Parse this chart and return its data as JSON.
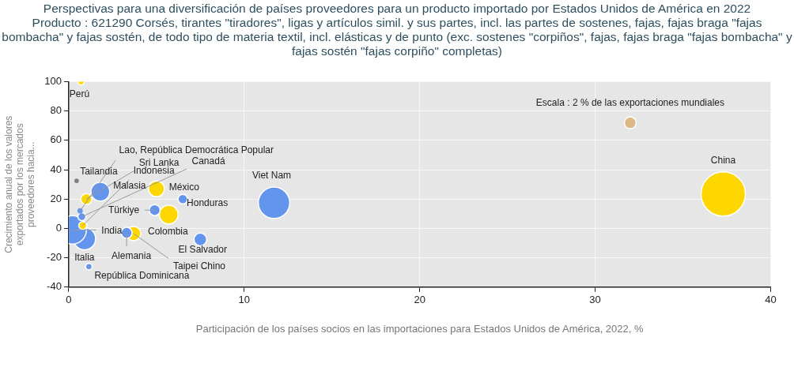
{
  "chart_data": {
    "type": "bubble",
    "title": "Perspectivas para una diversificación de países proveedores para un producto importado por Estados Unidos de América en 2022",
    "subtitle": "Producto : 621290 Corsés, tirantes \"tiradores\", ligas y artículos simil. y sus partes, incl. las partes de sostenes, fajas, fajas braga \"fajas bombacha\" y fajas sostén, de todo tipo de materia textil, incl. elásticas y de punto (exc. sostenes \"corpiños\", fajas, fajas braga \"fajas bombacha\" y fajas sostén \"fajas corpiño\" completas)",
    "xlabel": "Participación de los países socios en las importaciones para Estados Unidos de América, 2022, %",
    "ylabel": "Crecimiento anual de los valores exportados por los mercados proveedores hacia...",
    "xlim": [
      0,
      40
    ],
    "xticks": [
      0,
      10,
      20,
      30,
      40
    ],
    "ylim": [
      -40,
      100
    ],
    "yticks": [
      -40,
      -20,
      0,
      20,
      40,
      60,
      80,
      100
    ],
    "grid": true,
    "legend": false,
    "marker": "circle",
    "size_legend": [
      {
        "value": 2,
        "label": "Escala : 2 % de las exportaciones mundiales"
      }
    ],
    "series": [
      {
        "name": "Perú",
        "color": "#ffd700",
        "x": [
          0.7
        ],
        "values": [
          100
        ],
        "sizes": [
          0.6
        ]
      },
      {
        "name": "Lao, República Democrática Popular",
        "color": "#6495ed",
        "x": [
          0.65
        ],
        "values": [
          12
        ],
        "sizes": [
          0.4
        ]
      },
      {
        "name": "Sri Lanka",
        "color": "#ffd700",
        "x": [
          1.0
        ],
        "values": [
          20
        ],
        "sizes": [
          1.7
        ]
      },
      {
        "name": "Canadá",
        "color": "#6495ed",
        "x": [
          0.75
        ],
        "values": [
          8
        ],
        "sizes": [
          0.9
        ]
      },
      {
        "name": "Tailandia",
        "color": "#808080",
        "x": [
          0.45
        ],
        "values": [
          32.5
        ],
        "sizes": [
          0.3
        ]
      },
      {
        "name": "Indonesia",
        "color": "#ffd700",
        "x": [
          0.8
        ],
        "values": [
          2
        ],
        "sizes": [
          0.9
        ]
      },
      {
        "name": "Malasia",
        "color": "#6495ed",
        "x": [
          1.8
        ],
        "values": [
          25
        ],
        "sizes": [
          5
        ]
      },
      {
        "name": "México",
        "color": "#ffd700",
        "x": [
          5.0
        ],
        "values": [
          27
        ],
        "sizes": [
          3.6
        ]
      },
      {
        "name": "Türkiye",
        "color": "#6495ed",
        "x": [
          4.9
        ],
        "values": [
          12.5
        ],
        "sizes": [
          1.7
        ]
      },
      {
        "name": "Honduras",
        "color": "#6495ed",
        "x": [
          6.5
        ],
        "values": [
          20
        ],
        "sizes": [
          1.3
        ]
      },
      {
        "name": "India",
        "color": "#6495ed",
        "x": [
          0.2
        ],
        "values": [
          -1
        ],
        "sizes": [
          11.5
        ]
      },
      {
        "name": "Colombia",
        "color": "#ffd700",
        "x": [
          5.7
        ],
        "values": [
          9.5
        ],
        "sizes": [
          5
        ]
      },
      {
        "name": "Italia",
        "color": "#6495ed",
        "x": [
          0.9
        ],
        "values": [
          -7
        ],
        "sizes": [
          7
        ]
      },
      {
        "name": "Alemania",
        "color": "#6495ed",
        "x": [
          3.3
        ],
        "values": [
          -3
        ],
        "sizes": [
          1.7
        ]
      },
      {
        "name": "El Salvador",
        "color": "#6495ed",
        "x": [
          7.5
        ],
        "values": [
          -7.5
        ],
        "sizes": [
          2.3
        ]
      },
      {
        "name": "Taipei Chino",
        "color": "#ffd700",
        "x": [
          3.7
        ],
        "values": [
          -3.5
        ],
        "sizes": [
          2.9
        ]
      },
      {
        "name": "República Dominicana",
        "color": "#6495ed",
        "x": [
          1.15
        ],
        "values": [
          -26
        ],
        "sizes": [
          0.6
        ]
      },
      {
        "name": "Viet Nam",
        "color": "#6495ed",
        "x": [
          11.7
        ],
        "values": [
          17.5
        ],
        "sizes": [
          14
        ]
      },
      {
        "name": "China",
        "color": "#ffd700",
        "x": [
          37.3
        ],
        "values": [
          23.5
        ],
        "sizes": [
          28
        ]
      }
    ]
  }
}
